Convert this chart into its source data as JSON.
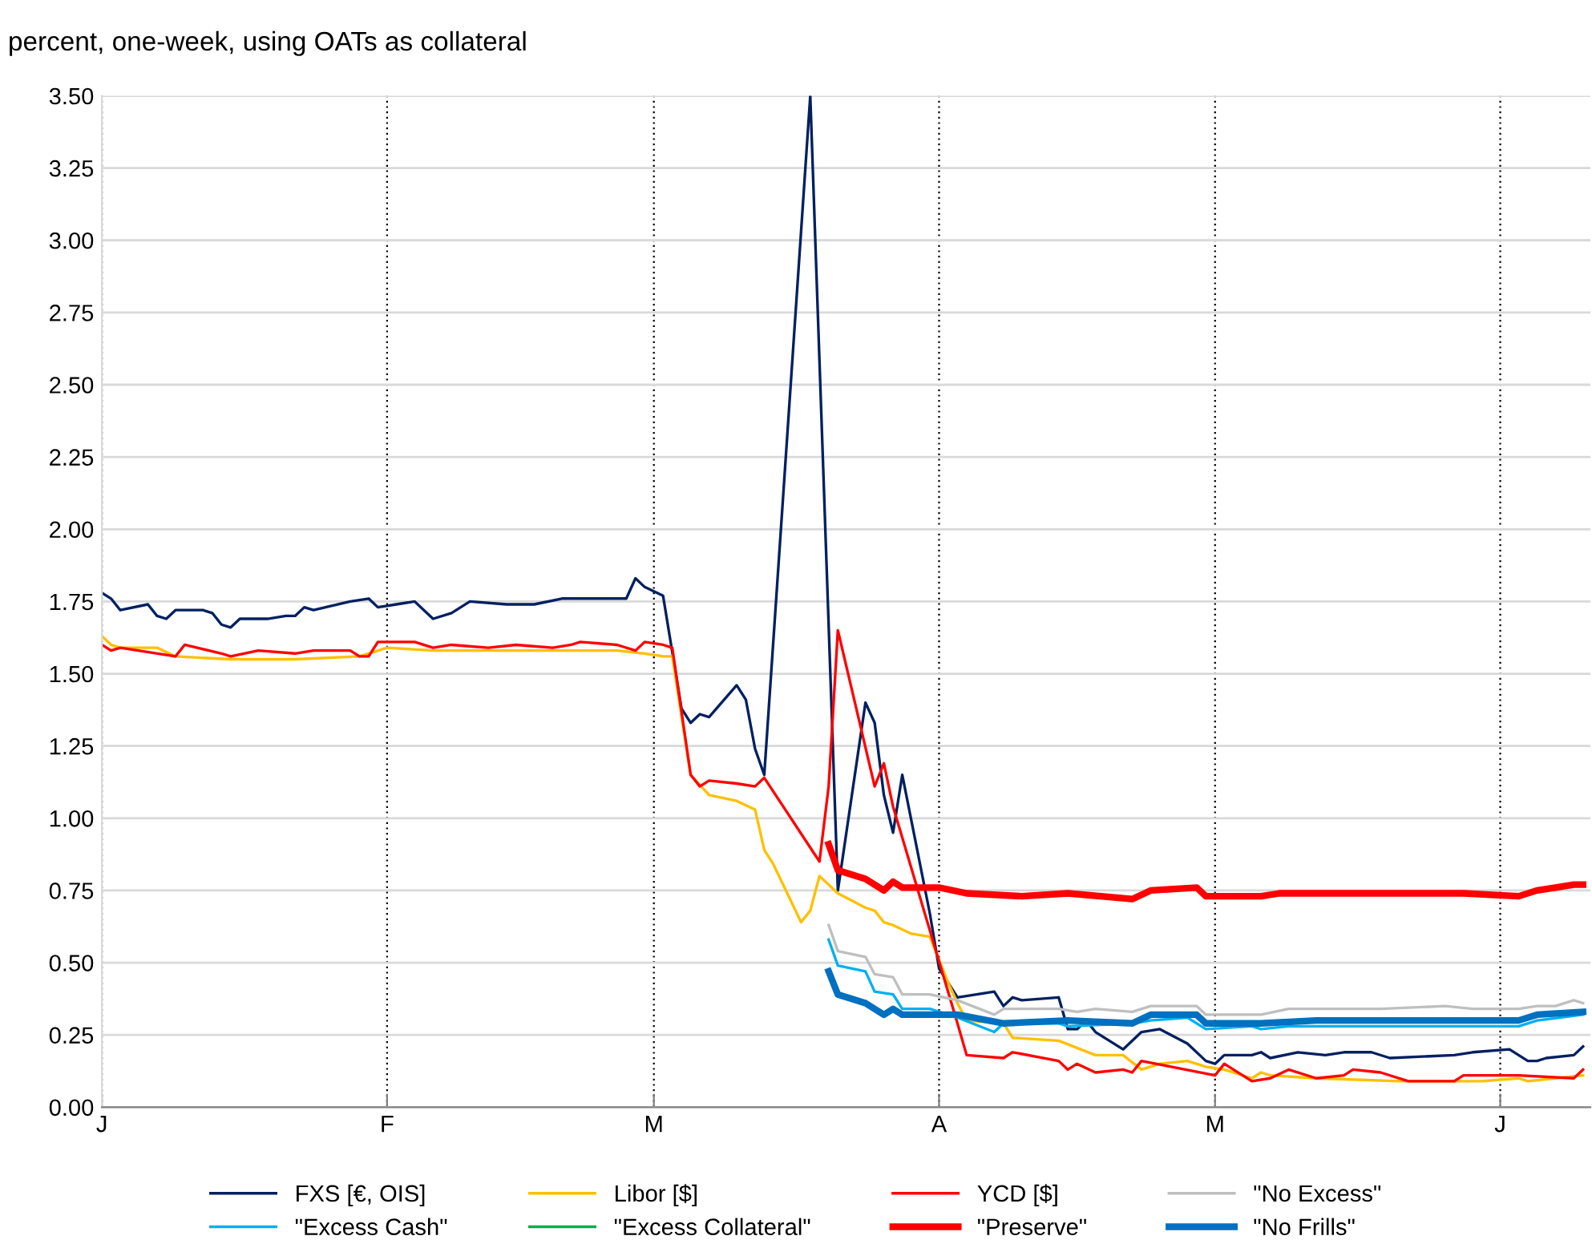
{
  "chart_data": {
    "type": "line",
    "title": "percent, one-week, using OATs as collateral",
    "categories": [
      "J",
      null,
      null,
      null,
      null,
      null,
      null,
      null,
      null,
      null,
      null,
      null,
      null,
      null,
      null,
      null,
      null,
      null,
      null,
      null,
      null,
      null,
      null,
      null,
      null,
      null,
      null,
      null,
      null,
      null,
      null,
      "F",
      null,
      null,
      null,
      null,
      null,
      null,
      null,
      null,
      null,
      null,
      null,
      null,
      null,
      null,
      null,
      null,
      null,
      null,
      null,
      null,
      null,
      null,
      null,
      null,
      null,
      null,
      null,
      null,
      "M",
      null,
      null,
      null,
      null,
      null,
      null,
      null,
      null,
      null,
      null,
      null,
      null,
      null,
      null,
      null,
      null,
      null,
      null,
      null,
      null,
      null,
      null,
      null,
      null,
      null,
      null,
      null,
      null,
      null,
      null,
      "A",
      null,
      null,
      null,
      null,
      null,
      null,
      null,
      null,
      null,
      null,
      null,
      null,
      null,
      null,
      null,
      null,
      null,
      null,
      null,
      null,
      null,
      null,
      null,
      null,
      null,
      null,
      null,
      null,
      null,
      "M",
      null,
      null,
      null,
      null,
      null,
      null,
      null,
      null,
      null,
      null,
      null,
      null,
      null,
      null,
      null,
      null,
      null,
      null,
      null,
      null,
      null,
      null,
      null,
      null,
      null,
      null,
      null,
      null,
      null,
      null,
      "J",
      null,
      null,
      null,
      null,
      null,
      null,
      null,
      null,
      null
    ],
    "ylim": [
      0,
      3.5
    ],
    "yticks": [
      {
        "value": 0,
        "label": "0.00"
      },
      {
        "value": 0.25,
        "label": "0.25"
      },
      {
        "value": 0.5,
        "label": "0.50"
      },
      {
        "value": 0.75,
        "label": "0.75"
      },
      {
        "value": 1,
        "label": "1.00"
      },
      {
        "value": 1.25,
        "label": "1.25"
      },
      {
        "value": 1.5,
        "label": "1.50"
      },
      {
        "value": 1.75,
        "label": "1.75"
      },
      {
        "value": 2,
        "label": "2.00"
      },
      {
        "value": 2.25,
        "label": "2.25"
      },
      {
        "value": 2.5,
        "label": "2.50"
      },
      {
        "value": 2.75,
        "label": "2.75"
      },
      {
        "value": 3,
        "label": "3.00"
      },
      {
        "value": 3.25,
        "label": "3.25"
      },
      {
        "value": 3.5,
        "label": "3.50"
      }
    ],
    "grid": true,
    "legend": "bottom",
    "marker": "none",
    "line_style": "solid",
    "series": [
      {
        "name": "FXS [€, OIS]",
        "color": "#002060",
        "values": [
          1.78,
          1.76,
          1.72,
          null,
          null,
          1.74,
          1.7,
          1.69,
          1.72,
          null,
          null,
          1.72,
          1.71,
          1.67,
          1.66,
          1.69,
          null,
          null,
          1.69,
          null,
          1.7,
          1.7,
          1.73,
          1.72,
          null,
          null,
          null,
          1.75,
          null,
          1.76,
          1.73,
          null,
          1.74,
          null,
          1.75,
          1.72,
          1.69,
          null,
          1.71,
          null,
          1.75,
          null,
          null,
          null,
          1.74,
          null,
          null,
          1.74,
          null,
          null,
          1.76,
          null,
          1.76,
          null,
          1.76,
          null,
          1.76,
          1.76,
          1.83,
          1.8,
          null,
          1.77,
          null,
          1.38,
          1.33,
          1.36,
          1.35,
          null,
          null,
          1.46,
          1.41,
          1.24,
          1.15,
          null,
          null,
          null,
          null,
          3.5,
          null,
          null,
          0.75,
          null,
          null,
          1.4,
          1.33,
          1.08,
          0.95,
          1.15,
          null,
          null,
          0.67,
          0.48,
          null,
          0.38,
          null,
          null,
          null,
          0.4,
          0.35,
          0.38,
          0.37,
          null,
          null,
          null,
          0.38,
          0.27,
          0.27,
          0.3,
          0.26,
          null,
          null,
          0.2,
          null,
          0.26,
          null,
          0.27,
          null,
          null,
          0.22,
          null,
          0.16,
          0.15,
          0.18,
          null,
          null,
          0.18,
          0.19,
          0.17,
          null,
          null,
          0.19,
          null,
          null,
          0.18,
          null,
          0.19,
          null,
          null,
          0.19,
          null,
          0.17,
          null,
          null,
          null,
          null,
          null,
          null,
          0.18,
          null,
          0.19,
          null,
          null,
          null,
          0.2,
          null,
          0.16,
          0.16,
          0.17,
          null,
          null,
          0.18,
          0.21
        ]
      },
      {
        "name": "Libor [$]",
        "color": "#ffc000",
        "values": [
          1.63,
          1.6,
          1.59,
          null,
          null,
          null,
          1.59,
          null,
          1.56,
          null,
          null,
          null,
          null,
          null,
          1.55,
          null,
          null,
          null,
          null,
          null,
          null,
          1.55,
          null,
          null,
          null,
          null,
          null,
          null,
          1.56,
          null,
          null,
          1.59,
          null,
          null,
          null,
          null,
          1.58,
          null,
          null,
          null,
          null,
          null,
          null,
          null,
          null,
          null,
          null,
          null,
          null,
          null,
          null,
          null,
          null,
          null,
          null,
          null,
          1.58,
          null,
          null,
          1.57,
          null,
          1.56,
          1.56,
          null,
          1.15,
          null,
          1.08,
          null,
          null,
          1.06,
          null,
          1.03,
          0.89,
          0.84,
          null,
          null,
          0.64,
          0.68,
          0.8,
          null,
          0.74,
          null,
          null,
          0.69,
          0.68,
          0.64,
          0.63,
          null,
          0.6,
          null,
          0.59,
          null,
          0.43,
          0.36,
          0.3,
          null,
          null,
          null,
          0.29,
          0.24,
          null,
          null,
          null,
          null,
          0.23,
          null,
          null,
          null,
          0.18,
          null,
          null,
          0.18,
          null,
          0.13,
          null,
          0.15,
          null,
          null,
          0.16,
          null,
          0.14,
          null,
          0.13,
          null,
          null,
          0.1,
          0.12,
          0.11,
          null,
          null,
          null,
          null,
          0.1,
          null,
          null,
          null,
          null,
          null,
          null,
          null,
          null,
          0.09,
          null,
          null,
          null,
          null,
          null,
          null,
          null,
          null,
          0.09,
          null,
          null,
          null,
          0.1,
          0.09,
          null,
          null,
          0.1,
          null,
          null,
          0.11
        ]
      },
      {
        "name": "YCD [$]",
        "color": "#ff0000",
        "values": [
          1.6,
          1.58,
          1.59,
          null,
          null,
          null,
          null,
          null,
          1.56,
          1.6,
          null,
          null,
          null,
          1.57,
          1.56,
          null,
          null,
          1.58,
          null,
          null,
          null,
          1.57,
          null,
          1.58,
          null,
          null,
          null,
          1.58,
          1.56,
          1.56,
          1.61,
          null,
          null,
          null,
          1.61,
          null,
          1.59,
          null,
          1.6,
          null,
          null,
          null,
          1.59,
          null,
          null,
          1.6,
          null,
          null,
          null,
          1.59,
          null,
          1.6,
          1.61,
          null,
          null,
          null,
          1.6,
          null,
          1.58,
          1.61,
          null,
          1.6,
          1.59,
          null,
          1.15,
          1.11,
          1.13,
          null,
          null,
          1.12,
          null,
          1.11,
          1.14,
          null,
          null,
          null,
          null,
          null,
          0.85,
          1.11,
          1.65,
          null,
          null,
          null,
          1.11,
          1.19,
          1.04,
          null,
          null,
          null,
          null,
          null,
          null,
          0.29,
          0.18,
          null,
          null,
          null,
          0.17,
          0.19,
          null,
          null,
          null,
          null,
          0.16,
          0.13,
          0.15,
          null,
          0.12,
          null,
          null,
          0.13,
          0.12,
          0.16,
          null,
          null,
          null,
          null,
          null,
          null,
          null,
          0.11,
          0.15,
          null,
          null,
          0.09,
          null,
          0.1,
          null,
          0.13,
          null,
          null,
          0.1,
          null,
          null,
          0.11,
          0.13,
          null,
          null,
          0.12,
          null,
          null,
          0.09,
          null,
          null,
          null,
          null,
          0.09,
          0.11,
          null,
          null,
          null,
          0.11,
          null,
          0.11,
          null,
          null,
          null,
          null,
          null,
          0.1,
          0.13
        ]
      },
      {
        "name": "\"No Excess\"",
        "color": "#bfbfbf",
        "values": [
          null,
          null,
          null,
          null,
          null,
          null,
          null,
          null,
          null,
          null,
          null,
          null,
          null,
          null,
          null,
          null,
          null,
          null,
          null,
          null,
          null,
          null,
          null,
          null,
          null,
          null,
          null,
          null,
          null,
          null,
          null,
          null,
          null,
          null,
          null,
          null,
          null,
          null,
          null,
          null,
          null,
          null,
          null,
          null,
          null,
          null,
          null,
          null,
          null,
          null,
          null,
          null,
          null,
          null,
          null,
          null,
          null,
          null,
          null,
          null,
          null,
          null,
          null,
          null,
          null,
          null,
          null,
          null,
          null,
          null,
          null,
          null,
          null,
          null,
          null,
          null,
          null,
          null,
          null,
          0.63,
          0.54,
          null,
          null,
          0.52,
          0.46,
          null,
          0.45,
          0.39,
          null,
          null,
          0.39,
          null,
          null,
          0.37,
          null,
          null,
          null,
          0.32,
          0.34,
          null,
          null,
          null,
          null,
          null,
          0.34,
          null,
          0.33,
          null,
          0.34,
          null,
          null,
          null,
          0.33,
          null,
          0.35,
          null,
          null,
          null,
          null,
          0.35,
          0.32,
          null,
          null,
          null,
          null,
          0.32,
          0.32,
          null,
          null,
          0.34,
          null,
          null,
          null,
          null,
          null,
          null,
          null,
          null,
          null,
          0.34,
          null,
          null,
          null,
          null,
          null,
          null,
          0.35,
          null,
          null,
          0.34,
          null,
          null,
          null,
          null,
          0.34,
          null,
          0.35,
          null,
          0.35,
          null,
          0.37,
          0.36
        ]
      },
      {
        "name": "\"Excess Cash\"",
        "color": "#00b0f0",
        "values": [
          null,
          null,
          null,
          null,
          null,
          null,
          null,
          null,
          null,
          null,
          null,
          null,
          null,
          null,
          null,
          null,
          null,
          null,
          null,
          null,
          null,
          null,
          null,
          null,
          null,
          null,
          null,
          null,
          null,
          null,
          null,
          null,
          null,
          null,
          null,
          null,
          null,
          null,
          null,
          null,
          null,
          null,
          null,
          null,
          null,
          null,
          null,
          null,
          null,
          null,
          null,
          null,
          null,
          null,
          null,
          null,
          null,
          null,
          null,
          null,
          null,
          null,
          null,
          null,
          null,
          null,
          null,
          null,
          null,
          null,
          null,
          null,
          null,
          null,
          null,
          null,
          null,
          null,
          null,
          0.58,
          0.49,
          null,
          null,
          0.47,
          0.4,
          null,
          0.39,
          0.34,
          null,
          null,
          0.34,
          null,
          null,
          0.31,
          null,
          null,
          null,
          0.26,
          0.29,
          null,
          null,
          null,
          null,
          null,
          0.29,
          0.28,
          null,
          null,
          null,
          null,
          null,
          null,
          0.29,
          null,
          0.3,
          null,
          null,
          null,
          0.31,
          null,
          0.27,
          null,
          null,
          null,
          null,
          0.28,
          0.27,
          null,
          null,
          0.28,
          null,
          null,
          null,
          null,
          null,
          null,
          null,
          null,
          null,
          null,
          null,
          null,
          null,
          null,
          null,
          null,
          null,
          null,
          null,
          null,
          null,
          null,
          0.28,
          null,
          0.28,
          null,
          0.3,
          null,
          null,
          null,
          null,
          0.32
        ]
      },
      {
        "name": "\"Excess Collateral\"",
        "color": "#00b050",
        "values": [
          null,
          null,
          null,
          null,
          null,
          null,
          null,
          null,
          null,
          null,
          null,
          null,
          null,
          null,
          null,
          null,
          null,
          null,
          null,
          null,
          null,
          null,
          null,
          null,
          null,
          null,
          null,
          null,
          null,
          null,
          null,
          null,
          null,
          null,
          null,
          null,
          null,
          null,
          null,
          null,
          null,
          null,
          null,
          null,
          null,
          null,
          null,
          null,
          null,
          null,
          null,
          null,
          null,
          null,
          null,
          null,
          null,
          null,
          null,
          null,
          null,
          null,
          null,
          null,
          null,
          null,
          null,
          null,
          null,
          null,
          null,
          null,
          null,
          null,
          null,
          null,
          null,
          null,
          null,
          null,
          null,
          null,
          null,
          null,
          null,
          null,
          null,
          null,
          null,
          null,
          null,
          null,
          null,
          null,
          null,
          null,
          null,
          null,
          null,
          null,
          null,
          null,
          null,
          null,
          null,
          null,
          null,
          null,
          null,
          null,
          null,
          null,
          null,
          null,
          null,
          null,
          null,
          null,
          null,
          null,
          null,
          null,
          null,
          null,
          null,
          null,
          null,
          null,
          null,
          null,
          null,
          null,
          null,
          null,
          null,
          null,
          null,
          null,
          null,
          null,
          null,
          null,
          null,
          null,
          null,
          null,
          null,
          null,
          null,
          null,
          null,
          null,
          null,
          null,
          null,
          null,
          null,
          null,
          null,
          null,
          null,
          null
        ]
      },
      {
        "name": "\"Preserve\"",
        "color": "#ff0000",
        "values": [
          null,
          null,
          null,
          null,
          null,
          null,
          null,
          null,
          null,
          null,
          null,
          null,
          null,
          null,
          null,
          null,
          null,
          null,
          null,
          null,
          null,
          null,
          null,
          null,
          null,
          null,
          null,
          null,
          null,
          null,
          null,
          null,
          null,
          null,
          null,
          null,
          null,
          null,
          null,
          null,
          null,
          null,
          null,
          null,
          null,
          null,
          null,
          null,
          null,
          null,
          null,
          null,
          null,
          null,
          null,
          null,
          null,
          null,
          null,
          null,
          null,
          null,
          null,
          null,
          null,
          null,
          null,
          null,
          null,
          null,
          null,
          null,
          null,
          null,
          null,
          null,
          null,
          null,
          null,
          0.91,
          0.82,
          null,
          null,
          0.79,
          null,
          0.75,
          0.78,
          0.76,
          null,
          null,
          null,
          0.76,
          null,
          null,
          0.74,
          null,
          null,
          null,
          null,
          null,
          0.73,
          null,
          null,
          null,
          null,
          0.74,
          null,
          null,
          null,
          null,
          null,
          null,
          0.72,
          null,
          0.75,
          null,
          null,
          null,
          null,
          0.76,
          0.73,
          null,
          null,
          null,
          null,
          null,
          0.73,
          null,
          0.74,
          null,
          null,
          null,
          null,
          null,
          null,
          0.74,
          null,
          null,
          null,
          null,
          null,
          null,
          null,
          null,
          0.74,
          null,
          null,
          null,
          0.74,
          null,
          null,
          null,
          null,
          null,
          0.73,
          null,
          0.75,
          null,
          0.76,
          null,
          0.77,
          0.77
        ]
      },
      {
        "name": "\"No Frills\"",
        "color": "#0070c0",
        "values": [
          null,
          null,
          null,
          null,
          null,
          null,
          null,
          null,
          null,
          null,
          null,
          null,
          null,
          null,
          null,
          null,
          null,
          null,
          null,
          null,
          null,
          null,
          null,
          null,
          null,
          null,
          null,
          null,
          null,
          null,
          null,
          null,
          null,
          null,
          null,
          null,
          null,
          null,
          null,
          null,
          null,
          null,
          null,
          null,
          null,
          null,
          null,
          null,
          null,
          null,
          null,
          null,
          null,
          null,
          null,
          null,
          null,
          null,
          null,
          null,
          null,
          null,
          null,
          null,
          null,
          null,
          null,
          null,
          null,
          null,
          null,
          null,
          null,
          null,
          null,
          null,
          null,
          null,
          null,
          0.47,
          0.39,
          null,
          null,
          0.36,
          null,
          0.32,
          0.34,
          0.32,
          null,
          null,
          null,
          null,
          null,
          0.32,
          null,
          null,
          null,
          null,
          0.29,
          null,
          null,
          null,
          null,
          null,
          null,
          0.3,
          null,
          null,
          null,
          null,
          null,
          null,
          0.29,
          null,
          0.32,
          null,
          null,
          null,
          null,
          0.32,
          0.29,
          null,
          null,
          null,
          null,
          null,
          0.29,
          null,
          null,
          null,
          null,
          null,
          0.3,
          null,
          null,
          null,
          null,
          null,
          null,
          null,
          null,
          null,
          null,
          null,
          0.3,
          null,
          null,
          null,
          null,
          null,
          null,
          null,
          null,
          null,
          0.3,
          null,
          0.32,
          null,
          null,
          null,
          null,
          0.33
        ]
      }
    ]
  }
}
